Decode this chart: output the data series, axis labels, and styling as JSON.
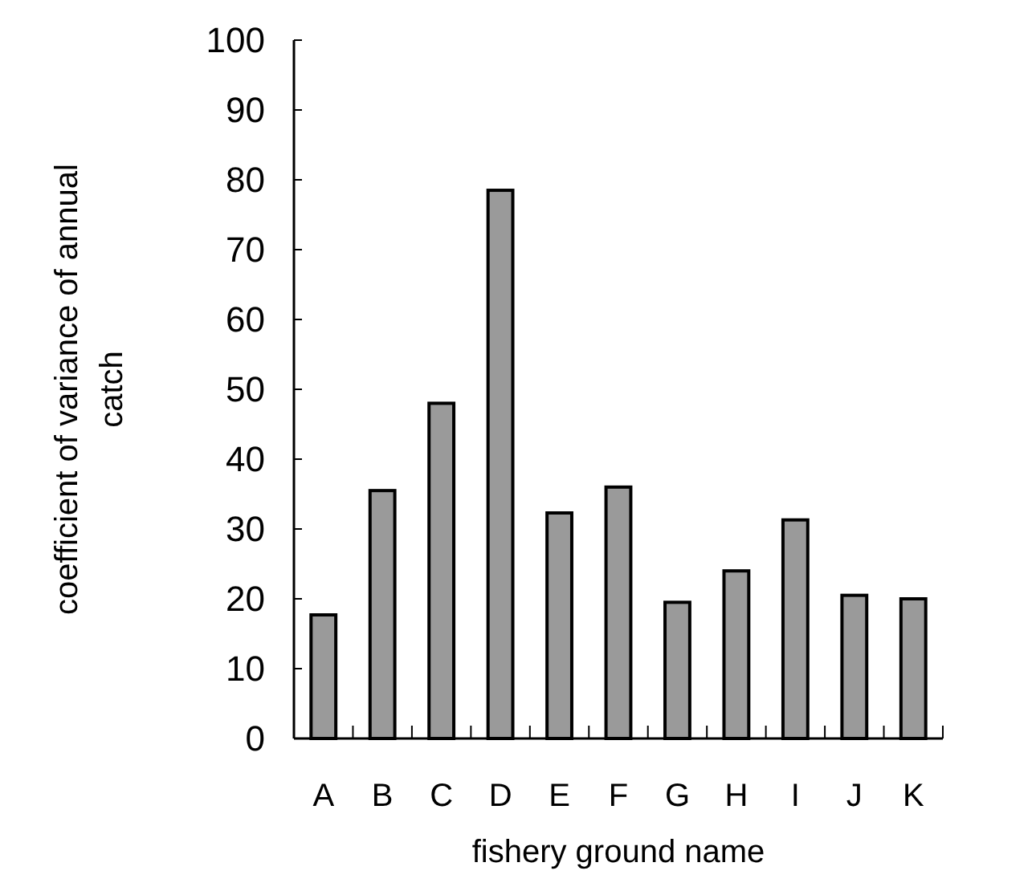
{
  "chart_data": {
    "type": "bar",
    "xlabel": "fishery ground name",
    "ylabel": "coefficient of  variance of annual catch",
    "categories": [
      "A",
      "B",
      "C",
      "D",
      "E",
      "F",
      "G",
      "H",
      "I",
      "J",
      "K"
    ],
    "values": [
      17.7,
      35.5,
      48,
      78.5,
      32.3,
      36,
      19.5,
      24,
      31.3,
      20.5,
      20
    ],
    "color": "#9a9a9a",
    "ylim": [
      0,
      100
    ],
    "yticks": [
      0,
      10,
      20,
      30,
      40,
      50,
      60,
      70,
      80,
      90,
      100
    ],
    "grid": false
  }
}
